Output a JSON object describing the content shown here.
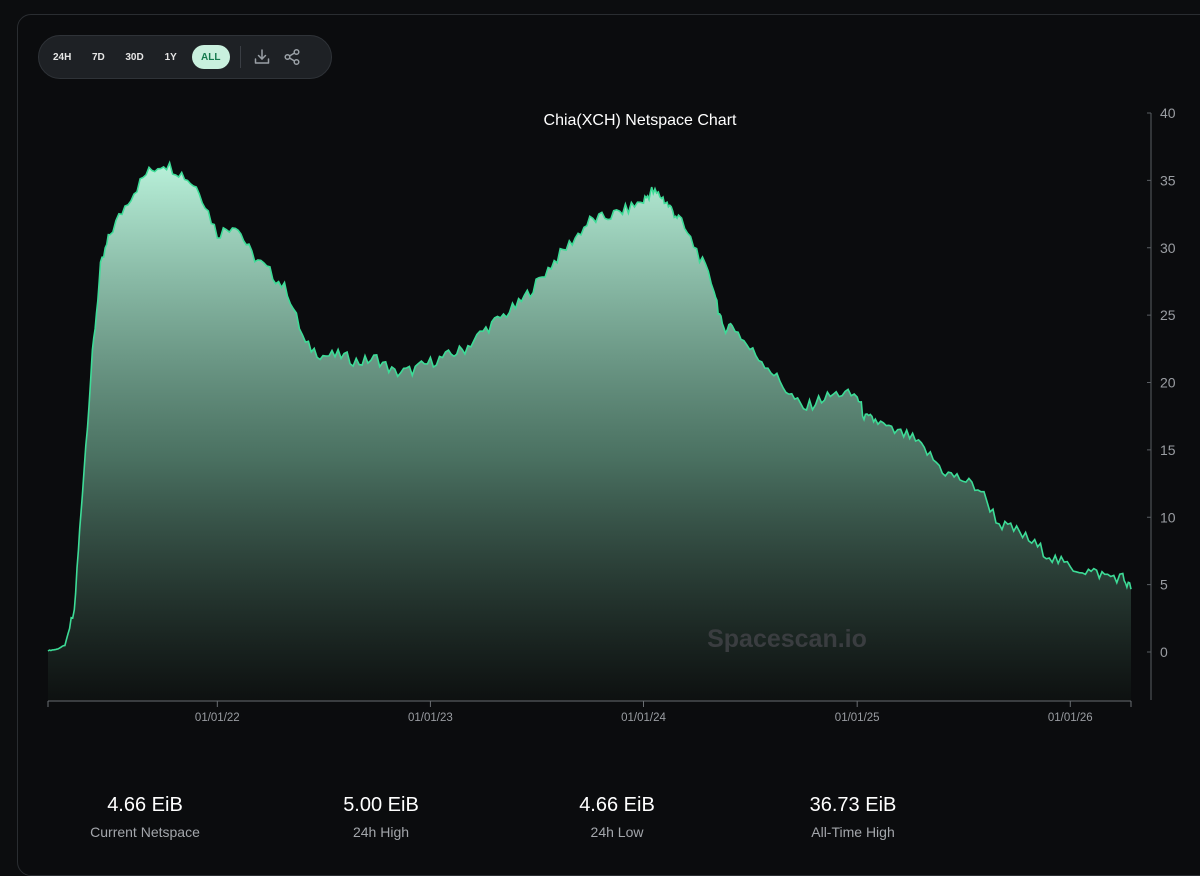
{
  "toolbar": {
    "ranges": [
      "24H",
      "7D",
      "30D",
      "1Y",
      "ALL"
    ],
    "active_range": "ALL",
    "download_icon": "download-icon",
    "share_icon": "share-icon"
  },
  "watermark": "Spacescan.io",
  "colors": {
    "line": "#3ddc97",
    "fill_top": "#b9f1da",
    "background": "#0c0d0f"
  },
  "chart_data": {
    "type": "area",
    "title": "Chia(XCH) Netspace Chart",
    "xlabel": "",
    "ylabel": "",
    "x_ticks": [
      "01/01/22",
      "01/01/23",
      "01/01/24",
      "01/01/25",
      "01/01/26"
    ],
    "y_ticks": [
      0,
      5,
      10,
      15,
      20,
      25,
      30,
      35,
      40
    ],
    "ylim": [
      0,
      40
    ],
    "y_axis_position": "right",
    "grid": false,
    "series": [
      {
        "x": [
          "2021-03-17",
          "2021-04-01",
          "2021-04-15",
          "2021-05-01",
          "2021-05-15",
          "2021-06-01",
          "2021-06-15",
          "2021-07-01",
          "2021-08-01",
          "2021-09-01",
          "2021-10-01",
          "2021-11-01",
          "2021-12-01",
          "2022-01-01",
          "2022-02-01",
          "2022-03-01",
          "2022-04-01",
          "2022-05-01",
          "2022-06-01",
          "2022-07-01",
          "2022-08-01",
          "2022-09-01",
          "2022-10-01",
          "2022-11-01",
          "2022-12-01",
          "2023-01-01",
          "2023-02-01",
          "2023-03-01",
          "2023-04-01",
          "2023-05-01",
          "2023-06-01",
          "2023-07-01",
          "2023-08-01",
          "2023-09-01",
          "2023-10-01",
          "2023-11-01",
          "2023-12-01",
          "2024-01-01",
          "2024-01-15",
          "2024-02-01",
          "2024-02-15",
          "2024-03-01",
          "2024-04-01",
          "2024-05-01",
          "2024-05-15",
          "2024-06-01",
          "2024-07-01",
          "2024-08-01",
          "2024-09-01",
          "2024-10-01",
          "2024-11-01",
          "2024-12-01",
          "2025-01-01",
          "2025-01-15",
          "2025-02-01",
          "2025-03-01",
          "2025-04-01",
          "2025-05-01",
          "2025-06-01",
          "2025-07-01",
          "2025-08-01",
          "2025-09-01",
          "2025-10-01",
          "2025-11-01",
          "2025-12-01",
          "2026-01-01",
          "2026-02-01",
          "2026-03-01",
          "2026-04-01",
          "2026-04-15"
        ],
        "values": [
          0.1,
          0.2,
          0.5,
          3.0,
          12.0,
          22.0,
          28.5,
          31.0,
          33.5,
          35.5,
          36.3,
          35.5,
          34.3,
          31.0,
          31.8,
          29.5,
          28.2,
          26.8,
          22.8,
          22.0,
          22.0,
          21.5,
          21.8,
          20.7,
          20.9,
          21.5,
          22.0,
          22.5,
          23.8,
          24.8,
          25.8,
          27.3,
          29.0,
          30.5,
          32.0,
          32.3,
          32.8,
          33.5,
          34.2,
          33.8,
          33.0,
          32.2,
          29.8,
          27.0,
          24.0,
          24.3,
          22.5,
          21.2,
          19.5,
          18.0,
          18.8,
          19.2,
          19.0,
          17.3,
          17.2,
          16.4,
          16.0,
          14.8,
          13.3,
          12.8,
          12.0,
          9.5,
          9.0,
          8.0,
          7.0,
          6.3,
          6.0,
          5.7,
          5.5,
          4.66
        ]
      }
    ]
  },
  "stats": [
    {
      "value": "4.66 EiB",
      "label": "Current Netspace"
    },
    {
      "value": "5.00 EiB",
      "label": "24h High"
    },
    {
      "value": "4.66 EiB",
      "label": "24h Low"
    },
    {
      "value": "36.73 EiB",
      "label": "All-Time High"
    }
  ]
}
